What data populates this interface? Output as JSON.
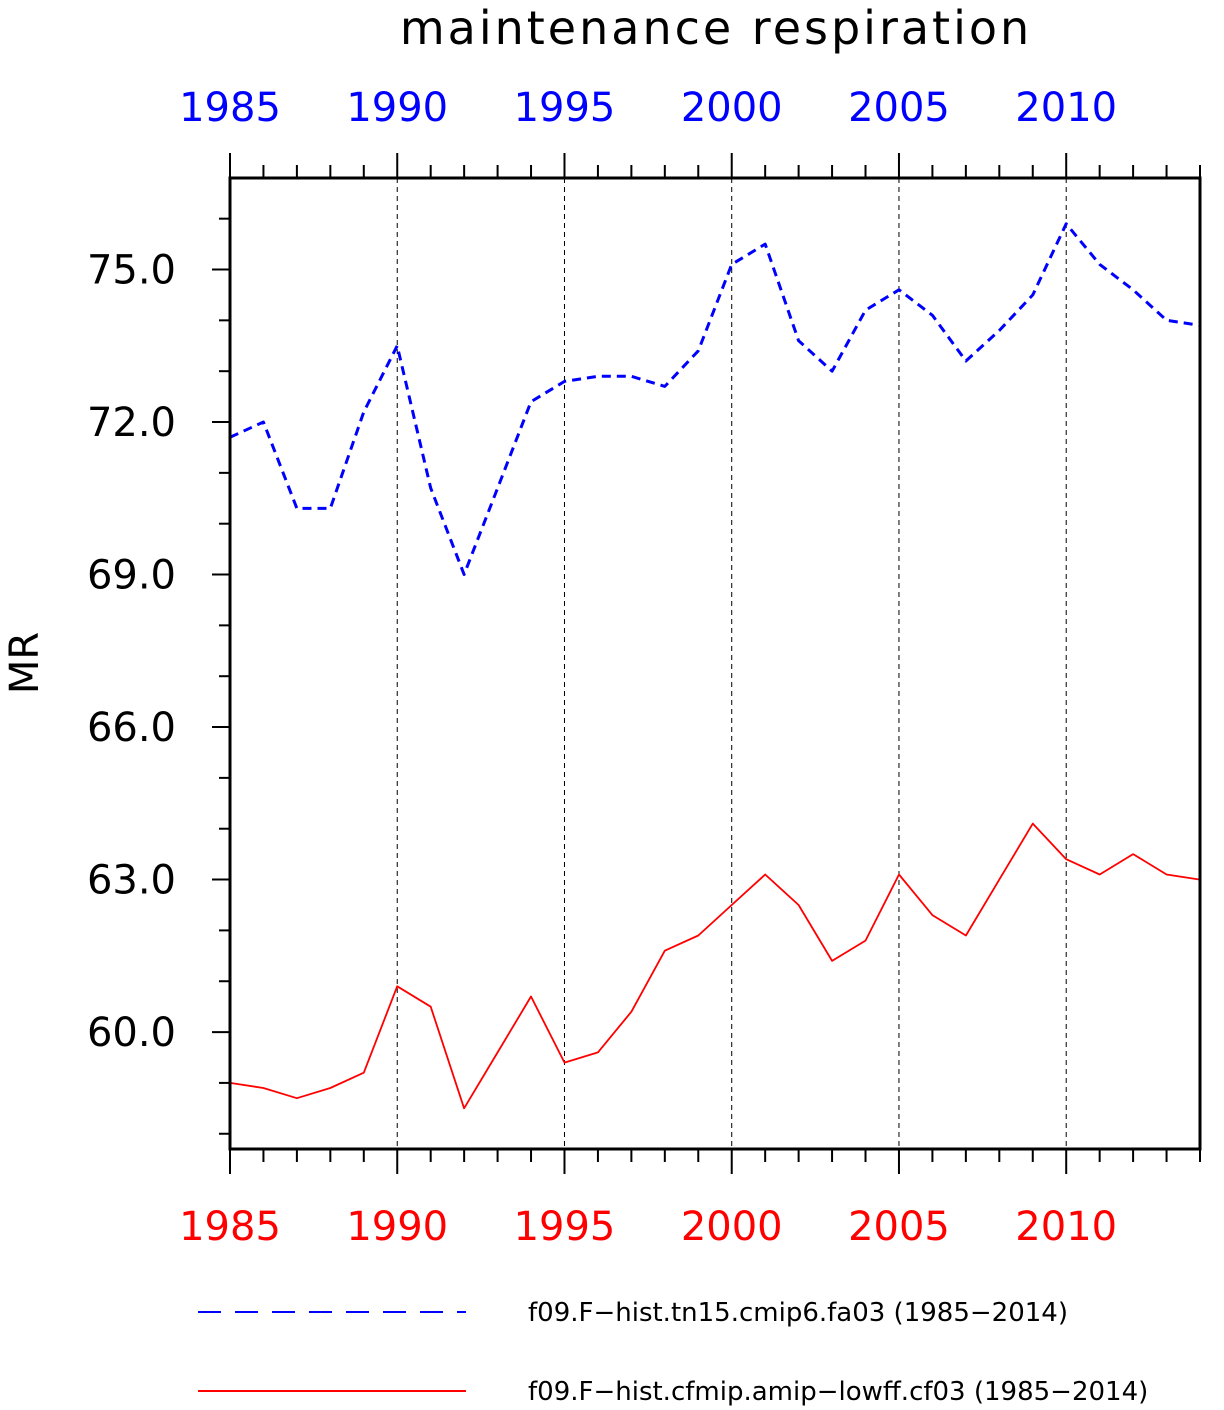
{
  "chart_data": {
    "type": "line",
    "title": "maintenance respiration",
    "ylabel": "MR",
    "xlim": [
      1985,
      2014
    ],
    "ylim": [
      57.7,
      76.8
    ],
    "grid": "vertical dashed lines at major x ticks",
    "legend_position": "bottom",
    "y_ticks": [
      60.0,
      63.0,
      66.0,
      69.0,
      72.0,
      75.0
    ],
    "y_tick_labels": [
      "60.0",
      "63.0",
      "66.0",
      "69.0",
      "72.0",
      "75.0"
    ],
    "x_ticks": [
      1985,
      1990,
      1995,
      2000,
      2005,
      2010
    ],
    "x_tick_labels": [
      "1985",
      "1990",
      "1995",
      "2000",
      "2005",
      "2010"
    ],
    "x_minor_step": 1,
    "y_minor_step": 1,
    "x": [
      1985,
      1986,
      1987,
      1988,
      1989,
      1990,
      1991,
      1992,
      1993,
      1994,
      1995,
      1996,
      1997,
      1998,
      1999,
      2000,
      2001,
      2002,
      2003,
      2004,
      2005,
      2006,
      2007,
      2008,
      2009,
      2010,
      2011,
      2012,
      2013,
      2014
    ],
    "series": [
      {
        "name": "f09.F−hist.tn15.cmip6.fa03 (1985−2014)",
        "color": "#0000ff",
        "style": "dashed",
        "values": [
          71.7,
          72.0,
          70.3,
          70.3,
          72.2,
          73.5,
          70.7,
          69.0,
          70.7,
          72.4,
          72.8,
          72.9,
          72.9,
          72.7,
          73.4,
          75.1,
          75.5,
          73.6,
          73.0,
          74.2,
          74.6,
          74.1,
          73.2,
          73.8,
          74.5,
          75.9,
          75.1,
          74.6,
          74.0,
          73.9
        ]
      },
      {
        "name": "f09.F−hist.cfmip.amip−lowff.cf03 (1985−2014)",
        "color": "#ff0000",
        "style": "solid",
        "values": [
          59.0,
          58.9,
          58.7,
          58.9,
          59.2,
          60.9,
          60.5,
          58.5,
          59.6,
          60.7,
          59.4,
          59.6,
          60.4,
          61.6,
          61.9,
          62.5,
          63.1,
          62.5,
          61.4,
          61.8,
          63.1,
          62.3,
          61.9,
          63.0,
          64.1,
          63.4,
          63.1,
          63.5,
          63.1,
          63.0
        ]
      }
    ]
  }
}
